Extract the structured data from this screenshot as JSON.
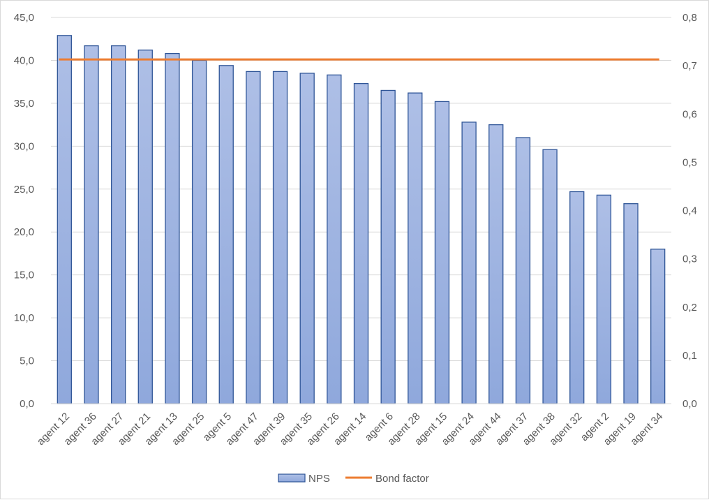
{
  "chart_data": {
    "type": "bar",
    "categories": [
      "agent 12",
      "agent 36",
      "agent 27",
      "agent 21",
      "agent 13",
      "agent 25",
      "agent 5",
      "agent 47",
      "agent 39",
      "agent 35",
      "agent 26",
      "agent 14",
      "agent 6",
      "agent 28",
      "agent 15",
      "agent 24",
      "agent 44",
      "agent 37",
      "agent 38",
      "agent 32",
      "agent 2",
      "agent 19",
      "agent 34"
    ],
    "series": [
      {
        "name": "NPS",
        "kind": "bar",
        "axis": "left",
        "values": [
          42.9,
          41.7,
          41.7,
          41.2,
          40.8,
          40.0,
          39.4,
          38.7,
          38.7,
          38.5,
          38.3,
          37.3,
          36.5,
          36.2,
          35.2,
          32.8,
          32.5,
          31.0,
          29.6,
          24.7,
          24.3,
          23.3,
          18.0
        ],
        "color": "#8fa8dc",
        "edge_color": "#2f5597"
      },
      {
        "name": "Bond factor",
        "kind": "line",
        "axis": "right",
        "values": [
          0.713,
          0.713,
          0.713,
          0.713,
          0.713,
          0.713,
          0.713,
          0.713,
          0.713,
          0.713,
          0.713,
          0.713,
          0.713,
          0.713,
          0.713,
          0.713,
          0.713,
          0.713,
          0.713,
          0.713,
          0.713,
          0.713,
          0.713
        ],
        "color": "#ed7d31"
      }
    ],
    "y_left": {
      "ylim": [
        0,
        45
      ],
      "ticks": [
        "0,0",
        "5,0",
        "10,0",
        "15,0",
        "20,0",
        "25,0",
        "30,0",
        "35,0",
        "40,0",
        "45,0"
      ]
    },
    "y_right": {
      "ylim": [
        0,
        0.8
      ],
      "ticks": [
        "0,0",
        "0,1",
        "0,2",
        "0,3",
        "0,4",
        "0,5",
        "0,6",
        "0,7",
        "0,8"
      ]
    },
    "grid": true,
    "legend_position": "bottom",
    "title": "",
    "xlabel": "",
    "ylabel": ""
  }
}
